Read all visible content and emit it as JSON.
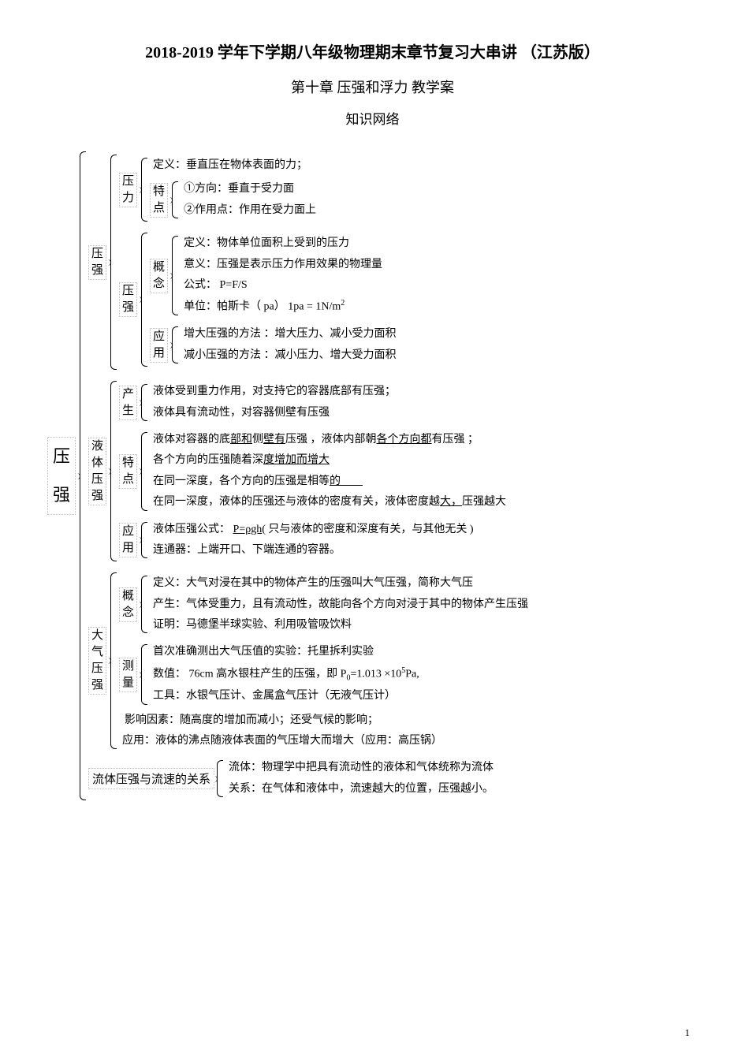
{
  "header": {
    "title1": "2018-2019 学年下学期八年级物理期末章节复习大串讲   （江苏版）",
    "title2": "第十章  压强和浮力  教学案",
    "title3": "知识网络"
  },
  "page_number": "1",
  "root_label": "压\n强",
  "sections": {
    "yaqiang": {
      "label": "压\n强",
      "yali": {
        "label": "压\n力",
        "def": "定义：垂直压在物体表面的力；",
        "tedian_label": "特\n点",
        "t1": "①方向：垂直于受力面",
        "t2": "②作用点：作用在受力面上"
      },
      "yaqiang_sub": {
        "label": "压\n强",
        "gainian_label": "概\n念",
        "g1": "定义：物体单位面积上受到的压力",
        "g2": "意义：压强是表示压力作用效果的物理量",
        "g3": "公式：  P=F/S",
        "g4": "单位：帕斯卡（ pa）   1pa = 1N/m",
        "g4_sup": "2",
        "yingyong_label": "应\n用",
        "y1": "增大压强的方法 ：增大压力、减小受力面积",
        "y2": "减小压强的方法 ：减小压力、增大受力面积"
      }
    },
    "yeti": {
      "label": "液\n体\n压\n强",
      "chansheng_label": "产\n生",
      "c1": "液体受到重力作用，对支持它的容器底部有压强；",
      "c2": "液体具有流动性，对容器侧壁有压强",
      "tedian_label": "特\n点",
      "t1a": "液体对容器的底",
      "t1b": "部和",
      "t1c": "侧",
      "t1d": "壁有",
      "t1e": "压强   ，液体内部朝",
      "t1f": "各个方向都",
      "t1g": "有压强   ；",
      "t2a": "各个方向的压强随着深",
      "t2b": "度增加而增大",
      "t3a": "在同一深度，各个方向的压强是相等",
      "t3b": "的",
      "t4a": "在同一深度，液体的压强还与液体的密度有关，液体密度越",
      "t4b": "大，",
      "t4c": "压强越大",
      "yingyong_label": "应\n用",
      "y1a": "液体压强公式：  ",
      "y1b": "P=ρgh",
      "y1c": "( 只与液体的密度和深度有关，与其他无关 )",
      "y2": "连通器：上端开口、下端连通的容器。"
    },
    "daqi": {
      "label": "大\n气\n压\n强",
      "gainian_label": "概\n念",
      "g1": "定义：大气对浸在其中的物体产生的压强叫大气压强，简称大气压",
      "g2": "产生：气体受重力，且有流动性，故能向各个方向对浸于其中的物体产生压强",
      "g3": "证明：马德堡半球实验、利用吸管吸饮料",
      "celiang_label": "测\n量",
      "m1": "首次准确测出大气压值的实验：托里拆利实验",
      "m2a": "数值： 76cm 高水银柱产生的压强，即   P",
      "m2b": "0",
      "m2c": "=1.013 ×10",
      "m2d": "5",
      "m2e": "Pa,",
      "m3": "工具：水银气压计、金属盒气压计（无液气压计）",
      "extra1": "影响因素：随高度的增加而减小；还受气候的影响；",
      "extra2": "应用：液体的沸点随液体表面的气压增大而增大（应用：高压锅）"
    },
    "liuti": {
      "label": "流体压强与流速的关系",
      "l1": "流体：物理学中把具有流动性的液体和气体统称为流体",
      "l2": "关系：在气体和液体中，流速越大的位置，压强越小。"
    }
  }
}
